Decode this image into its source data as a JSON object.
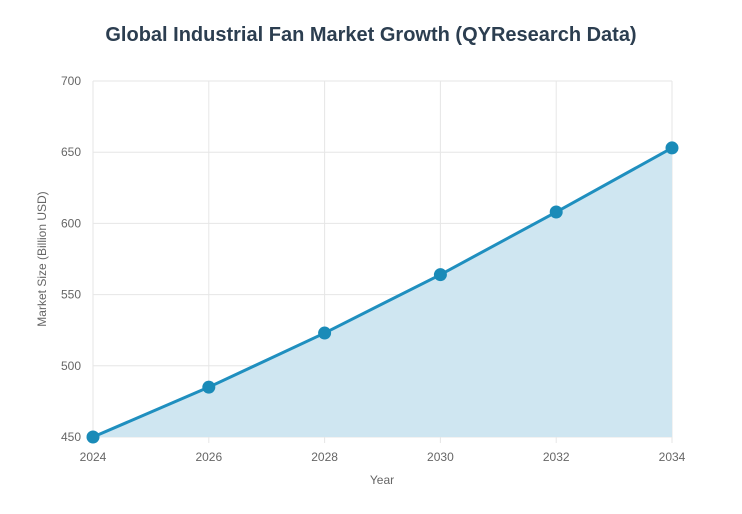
{
  "chart_data": {
    "type": "area",
    "title": "Global Industrial Fan Market Growth (QYResearch Data)",
    "xlabel": "Year",
    "ylabel": "Market Size (Billion USD)",
    "x": [
      "2024",
      "2026",
      "2028",
      "2030",
      "2032",
      "2034"
    ],
    "values": [
      450,
      485,
      523,
      564,
      608,
      653
    ],
    "ylim": [
      450,
      700
    ],
    "yticks": [
      "450",
      "500",
      "550",
      "600",
      "650",
      "700"
    ],
    "grid": true,
    "legend": "none",
    "colors": {
      "line": "#1f8fbf",
      "fill": "#cfe6f1",
      "point": "#1a8bb8"
    }
  }
}
